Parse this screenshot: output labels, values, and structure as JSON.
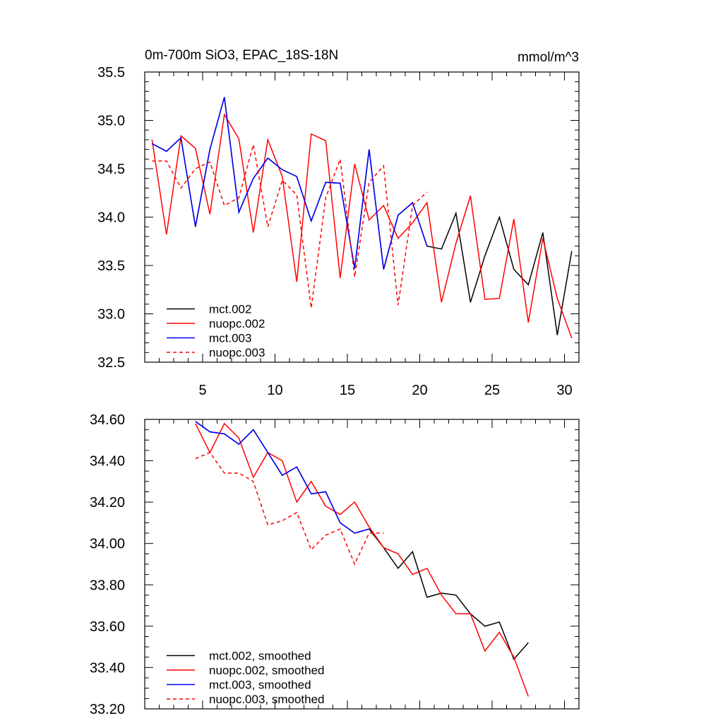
{
  "colors": {
    "black": "#000000",
    "red": "#ff0000",
    "blue": "#0000ff"
  },
  "chart_data": [
    {
      "type": "line",
      "title": "0m-700m SiO3, EPAC_18S-18N",
      "units": "mmol/m^3",
      "xlim": [
        1,
        31
      ],
      "ylim": [
        32.5,
        35.5
      ],
      "xticks": [
        5,
        10,
        15,
        20,
        25,
        30
      ],
      "xtick_labels": [
        "5",
        "10",
        "15",
        "20",
        "25",
        "30"
      ],
      "show_xtick_labels": true,
      "yticks": [
        32.5,
        33.0,
        33.5,
        34.0,
        34.5,
        35.0,
        35.5
      ],
      "ytick_labels": [
        "32.5",
        "33.0",
        "33.5",
        "34.0",
        "34.5",
        "35.0",
        "35.5"
      ],
      "legend_position": "bottom-left",
      "series": [
        {
          "name": "mct.002",
          "color": "#000000",
          "dash": "solid",
          "x": [
            1.5,
            2.5,
            3.5,
            4.5,
            5.5,
            6.5,
            7.5,
            8.5,
            9.5,
            10.5,
            11.5,
            12.5,
            13.5,
            14.5,
            15.5,
            16.5,
            17.5,
            18.5,
            19.5,
            20.5,
            21.5,
            22.5,
            23.5,
            24.5,
            25.5,
            26.5,
            27.5,
            28.5,
            29.5,
            30.5
          ],
          "values": [
            34.76,
            34.68,
            34.82,
            33.9,
            34.7,
            35.24,
            34.05,
            34.4,
            34.61,
            34.49,
            34.42,
            33.96,
            34.36,
            34.35,
            33.47,
            34.7,
            33.46,
            34.02,
            34.15,
            33.7,
            33.67,
            34.04,
            33.12,
            33.6,
            34.0,
            33.46,
            33.3,
            33.84,
            32.78,
            33.65
          ]
        },
        {
          "name": "nuopc.002",
          "color": "#ff0000",
          "dash": "solid",
          "x": [
            1.5,
            2.5,
            3.5,
            4.5,
            5.5,
            6.5,
            7.5,
            8.5,
            9.5,
            10.5,
            11.5,
            12.5,
            13.5,
            14.5,
            15.5,
            16.5,
            17.5,
            18.5,
            19.5,
            20.5,
            21.5,
            22.5,
            23.5,
            24.5,
            25.5,
            26.5,
            27.5,
            28.5,
            29.5,
            30.5
          ],
          "values": [
            34.8,
            33.82,
            34.84,
            34.71,
            34.03,
            35.06,
            34.81,
            33.84,
            34.8,
            34.42,
            33.33,
            34.86,
            34.79,
            33.37,
            34.55,
            33.97,
            34.12,
            33.78,
            33.94,
            34.15,
            33.12,
            33.73,
            34.22,
            33.15,
            33.16,
            33.98,
            32.91,
            33.78,
            33.16,
            32.75
          ]
        },
        {
          "name": "mct.003",
          "color": "#0000ff",
          "dash": "solid",
          "x": [
            1.5,
            2.5,
            3.5,
            4.5,
            5.5,
            6.5,
            7.5,
            8.5,
            9.5,
            10.5,
            11.5,
            12.5,
            13.5,
            14.5,
            15.5,
            16.5,
            17.5,
            18.5,
            19.5,
            20.5
          ],
          "values": [
            34.76,
            34.68,
            34.82,
            33.9,
            34.7,
            35.24,
            34.05,
            34.4,
            34.61,
            34.49,
            34.42,
            33.96,
            34.36,
            34.35,
            33.47,
            34.7,
            33.46,
            34.02,
            34.15,
            33.7
          ]
        },
        {
          "name": "nuopc.003",
          "color": "#ff0000",
          "dash": "dashed",
          "x": [
            1.5,
            2.5,
            3.5,
            4.5,
            5.5,
            6.5,
            7.5,
            8.5,
            9.5,
            10.5,
            11.5,
            12.5,
            13.5,
            14.5,
            15.5,
            16.5,
            17.5,
            18.5,
            19.5,
            20.5
          ],
          "values": [
            34.58,
            34.58,
            34.3,
            34.5,
            34.57,
            34.12,
            34.2,
            34.75,
            33.9,
            34.38,
            34.23,
            33.06,
            34.2,
            34.6,
            33.38,
            34.36,
            34.53,
            33.09,
            34.12,
            34.26
          ]
        }
      ]
    },
    {
      "type": "line",
      "title": "",
      "units": "",
      "xlim": [
        1,
        31
      ],
      "ylim": [
        33.2,
        34.6
      ],
      "xticks": [
        5,
        10,
        15,
        20,
        25,
        30
      ],
      "xtick_labels": [
        "5",
        "10",
        "15",
        "20",
        "25",
        "30"
      ],
      "show_xtick_labels": false,
      "yticks": [
        33.2,
        33.4,
        33.6,
        33.8,
        34.0,
        34.2,
        34.4,
        34.6
      ],
      "ytick_labels": [
        "33.20",
        "33.40",
        "33.60",
        "33.80",
        "34.00",
        "34.20",
        "34.40",
        "34.60"
      ],
      "legend_position": "bottom-left",
      "series": [
        {
          "name": "mct.002, smoothed",
          "color": "#000000",
          "dash": "solid",
          "x": [
            4.5,
            5.5,
            6.5,
            7.5,
            8.5,
            9.5,
            10.5,
            11.5,
            12.5,
            13.5,
            14.5,
            15.5,
            16.5,
            17.5,
            18.5,
            19.5,
            20.5,
            21.5,
            22.5,
            23.5,
            24.5,
            25.5,
            26.5,
            27.5
          ],
          "values": [
            34.59,
            34.54,
            34.53,
            34.48,
            34.55,
            34.44,
            34.33,
            34.37,
            34.24,
            34.25,
            34.1,
            34.05,
            34.07,
            33.98,
            33.88,
            33.96,
            33.74,
            33.76,
            33.75,
            33.66,
            33.6,
            33.62,
            33.44,
            33.52
          ]
        },
        {
          "name": "nuopc.002, smoothed",
          "color": "#ff0000",
          "dash": "solid",
          "x": [
            4.5,
            5.5,
            6.5,
            7.5,
            8.5,
            9.5,
            10.5,
            11.5,
            12.5,
            13.5,
            14.5,
            15.5,
            16.5,
            17.5,
            18.5,
            19.5,
            20.5,
            21.5,
            22.5,
            23.5,
            24.5,
            25.5,
            26.5,
            27.5
          ],
          "values": [
            34.58,
            34.44,
            34.58,
            34.51,
            34.32,
            34.44,
            34.4,
            34.2,
            34.3,
            34.18,
            34.14,
            34.2,
            34.08,
            33.98,
            33.95,
            33.85,
            33.88,
            33.75,
            33.66,
            33.66,
            33.48,
            33.57,
            33.45,
            33.26
          ]
        },
        {
          "name": "mct.003, smoothed",
          "color": "#0000ff",
          "dash": "solid",
          "x": [
            4.5,
            5.5,
            6.5,
            7.5,
            8.5,
            9.5,
            10.5,
            11.5,
            12.5,
            13.5,
            14.5,
            15.5,
            16.5
          ],
          "values": [
            34.59,
            34.54,
            34.53,
            34.48,
            34.55,
            34.44,
            34.33,
            34.37,
            34.24,
            34.25,
            34.1,
            34.05,
            34.07
          ]
        },
        {
          "name": "nuopc.003, smoothed",
          "color": "#ff0000",
          "dash": "dashed",
          "x": [
            4.5,
            5.5,
            6.5,
            7.5,
            8.5,
            9.5,
            10.5,
            11.5,
            12.5,
            13.5,
            14.5,
            15.5,
            16.5,
            17.5
          ],
          "values": [
            34.41,
            34.44,
            34.34,
            34.34,
            34.3,
            34.09,
            34.11,
            34.15,
            33.97,
            34.04,
            34.07,
            33.9,
            34.05,
            34.05
          ]
        }
      ]
    }
  ]
}
